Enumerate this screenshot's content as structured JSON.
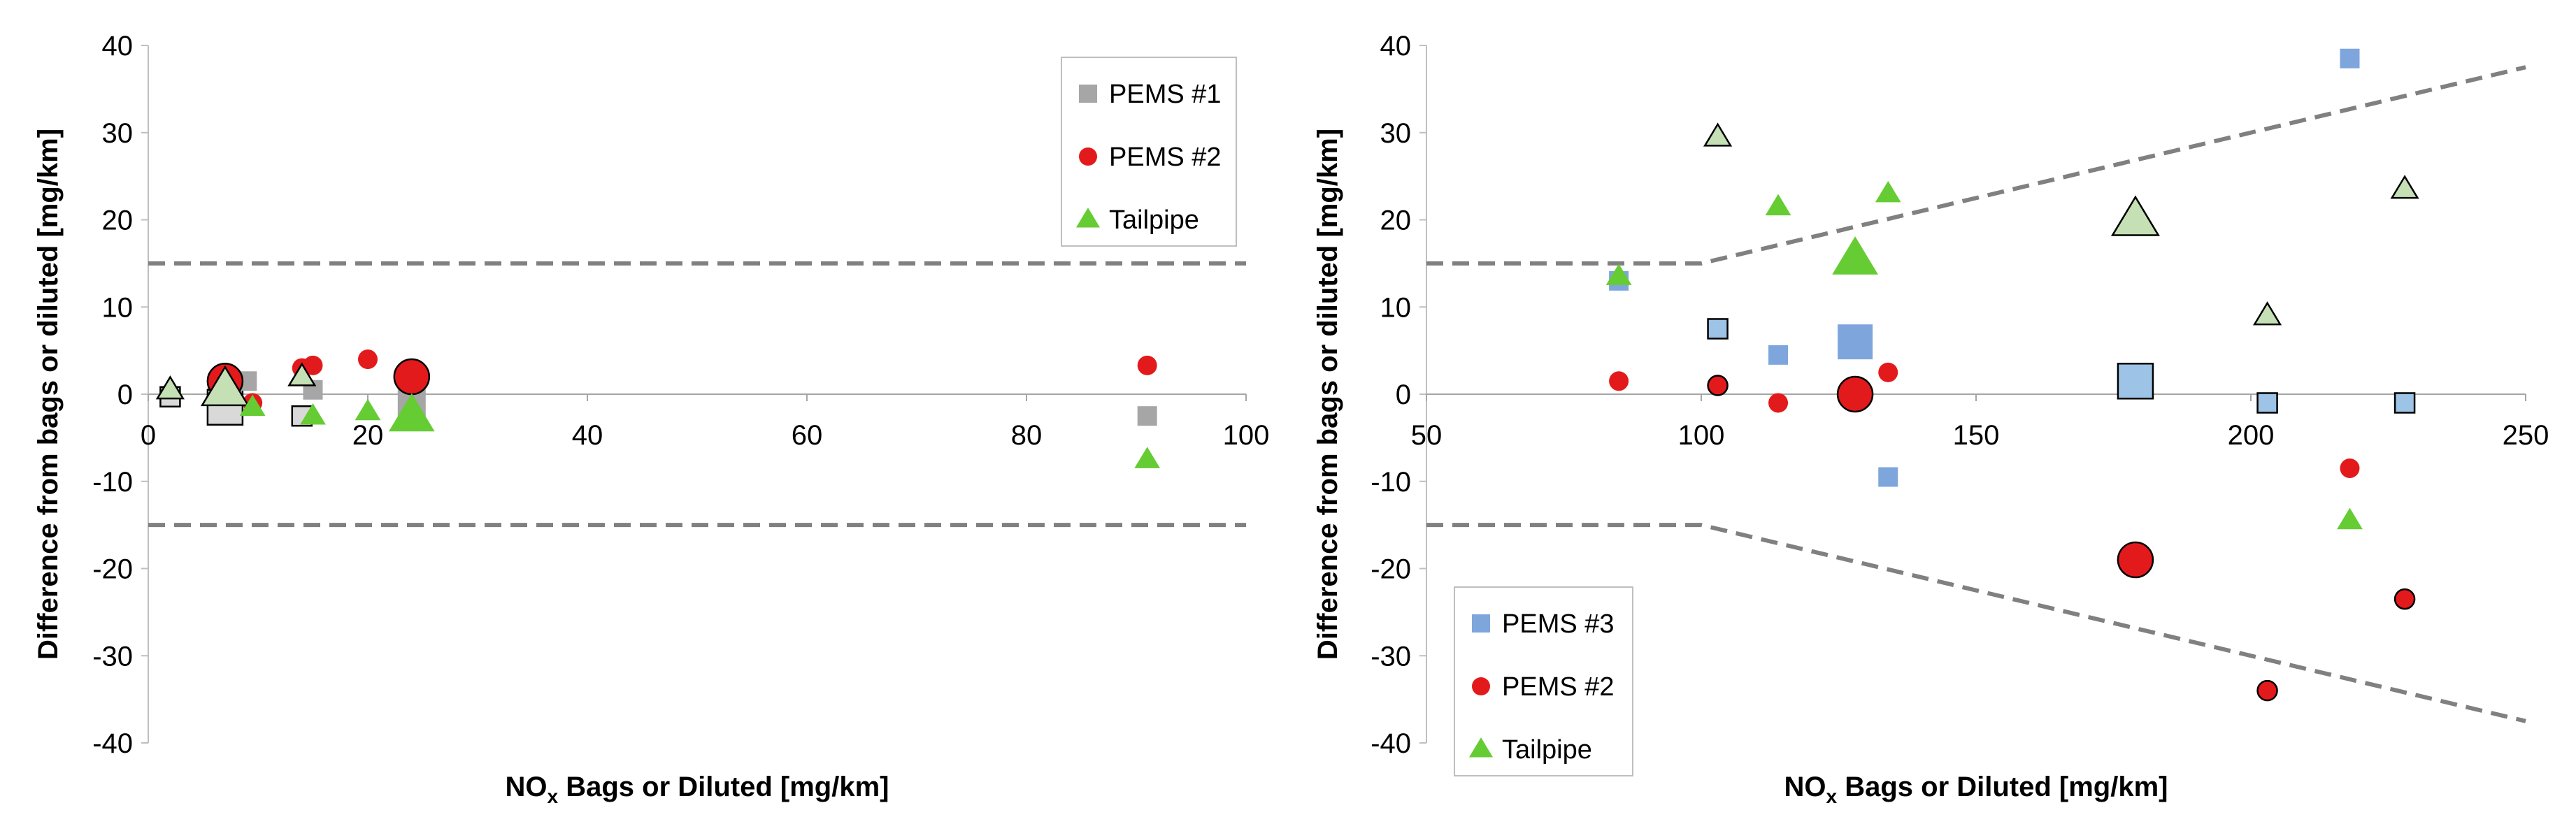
{
  "chart_data": [
    {
      "type": "scatter",
      "xlabel_prefix": "NO",
      "xlabel_sub": "x",
      "xlabel_suffix": " Bags or Diluted [mg/km]",
      "ylabel": "Difference from bags or diluted [mg/km]",
      "xlim": [
        0,
        100
      ],
      "ylim": [
        -40,
        40
      ],
      "xticks": [
        0,
        20,
        40,
        60,
        80,
        100
      ],
      "yticks": [
        -40,
        -30,
        -20,
        -10,
        0,
        10,
        20,
        30,
        40
      ],
      "legend_position": "top-right",
      "bounds": [
        {
          "name": "upper",
          "points": [
            [
              0,
              15
            ],
            [
              100,
              15
            ]
          ]
        },
        {
          "name": "lower",
          "points": [
            [
              0,
              -15
            ],
            [
              100,
              -15
            ]
          ]
        }
      ],
      "series": [
        {
          "name": "PEMS #1",
          "marker": "square",
          "color": "#A6A6A6",
          "points": [
            [
              2,
              -0.3,
              "s",
              "o"
            ],
            [
              7,
              -1.5,
              "l",
              "o"
            ],
            [
              9,
              1.5,
              "s",
              "f"
            ],
            [
              14,
              -2.5,
              "s",
              "o"
            ],
            [
              15,
              0.5,
              "s",
              "f"
            ],
            [
              24,
              -1,
              "m",
              "f"
            ],
            [
              91,
              -2.5,
              "s",
              "f"
            ]
          ]
        },
        {
          "name": "PEMS #2",
          "marker": "circle",
          "color": "#E31A1C",
          "points": [
            [
              7,
              1.5,
              "l",
              "o"
            ],
            [
              9.5,
              -1,
              "s",
              "f"
            ],
            [
              14,
              3,
              "s",
              "f"
            ],
            [
              15,
              3.3,
              "s",
              "f"
            ],
            [
              20,
              4,
              "s",
              "f"
            ],
            [
              24,
              2,
              "l",
              "o"
            ],
            [
              91,
              3.3,
              "s",
              "f"
            ]
          ]
        },
        {
          "name": "Tailpipe",
          "marker": "triangle",
          "color": "#66CC33",
          "points": [
            [
              2,
              0.5,
              "s",
              "o"
            ],
            [
              7,
              0.5,
              "l",
              "o"
            ],
            [
              9.5,
              -1.5,
              "s",
              "f"
            ],
            [
              14,
              2,
              "s",
              "o"
            ],
            [
              15,
              -2.5,
              "s",
              "f"
            ],
            [
              20,
              -2,
              "s",
              "f"
            ],
            [
              24,
              -2.5,
              "l",
              "f"
            ],
            [
              91,
              -7.5,
              "s",
              "f"
            ]
          ]
        }
      ]
    },
    {
      "type": "scatter",
      "xlabel_prefix": "NO",
      "xlabel_sub": "x",
      "xlabel_suffix": " Bags or Diluted [mg/km]",
      "ylabel": "Difference from bags or diluted [mg/km]",
      "xlim": [
        50,
        250
      ],
      "ylim": [
        -40,
        40
      ],
      "xticks": [
        50,
        100,
        150,
        200,
        250
      ],
      "yticks": [
        -40,
        -30,
        -20,
        -10,
        0,
        10,
        20,
        30,
        40
      ],
      "legend_position": "bottom-left",
      "bounds": [
        {
          "name": "upper",
          "points": [
            [
              50,
              15
            ],
            [
              100,
              15
            ],
            [
              250,
              37.5
            ]
          ]
        },
        {
          "name": "lower",
          "points": [
            [
              50,
              -15
            ],
            [
              100,
              -15
            ],
            [
              250,
              -37.5
            ]
          ]
        }
      ],
      "series": [
        {
          "name": "PEMS #3",
          "marker": "square",
          "color": "#7EA6DC",
          "points": [
            [
              85,
              13,
              "s",
              "f"
            ],
            [
              103,
              7.5,
              "s",
              "o"
            ],
            [
              114,
              4.5,
              "s",
              "f"
            ],
            [
              128,
              6,
              "l",
              "f"
            ],
            [
              134,
              -9.5,
              "s",
              "f"
            ],
            [
              179,
              1.5,
              "l",
              "o"
            ],
            [
              203,
              -1,
              "s",
              "o"
            ],
            [
              218,
              38.5,
              "s",
              "f"
            ],
            [
              228,
              -1,
              "s",
              "o"
            ]
          ]
        },
        {
          "name": "PEMS #2",
          "marker": "circle",
          "color": "#E31A1C",
          "points": [
            [
              85,
              1.5,
              "s",
              "f"
            ],
            [
              103,
              1,
              "s",
              "o"
            ],
            [
              114,
              -1,
              "s",
              "f"
            ],
            [
              128,
              0,
              "l",
              "o"
            ],
            [
              134,
              2.5,
              "s",
              "f"
            ],
            [
              179,
              -19,
              "l",
              "o"
            ],
            [
              203,
              -34,
              "s",
              "o"
            ],
            [
              218,
              -8.5,
              "s",
              "f"
            ],
            [
              228,
              -23.5,
              "s",
              "o"
            ]
          ]
        },
        {
          "name": "Tailpipe",
          "marker": "triangle",
          "color": "#66CC33",
          "points": [
            [
              85,
              13.5,
              "s",
              "f"
            ],
            [
              103,
              29.5,
              "s",
              "o"
            ],
            [
              114,
              21.5,
              "s",
              "f"
            ],
            [
              128,
              15.5,
              "l",
              "f"
            ],
            [
              134,
              23,
              "s",
              "f"
            ],
            [
              179,
              20,
              "l",
              "o"
            ],
            [
              203,
              9,
              "s",
              "o"
            ],
            [
              218,
              -14.5,
              "s",
              "f"
            ],
            [
              228,
              23.5,
              "s",
              "o"
            ]
          ]
        }
      ]
    }
  ]
}
